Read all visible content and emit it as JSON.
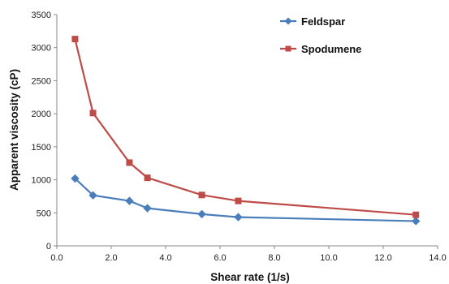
{
  "chart_data": {
    "type": "line",
    "xlabel": "Shear rate (1/s)",
    "ylabel": "Apparent viscosity (cP)",
    "xlim": [
      0,
      14
    ],
    "ylim": [
      0,
      3500
    ],
    "x_ticks": [
      "0.0",
      "2.0",
      "4.0",
      "6.0",
      "8.0",
      "10.0",
      "12.0",
      "14.0"
    ],
    "y_ticks": [
      "0",
      "500",
      "1000",
      "1500",
      "2000",
      "2500",
      "3000",
      "3500"
    ],
    "grid": false,
    "legend_position": "top-right",
    "series": [
      {
        "name": "Feldspar",
        "color": "#4a7ebb",
        "marker": "diamond",
        "x": [
          0.67,
          1.33,
          2.67,
          3.33,
          5.33,
          6.67,
          13.2
        ],
        "y": [
          1020,
          765,
          680,
          570,
          480,
          435,
          375
        ]
      },
      {
        "name": "Spodumene",
        "color": "#be4b48",
        "marker": "square",
        "x": [
          0.67,
          1.33,
          2.67,
          3.33,
          5.33,
          6.67,
          13.2
        ],
        "y": [
          3130,
          2010,
          1260,
          1030,
          770,
          680,
          470
        ]
      }
    ]
  }
}
